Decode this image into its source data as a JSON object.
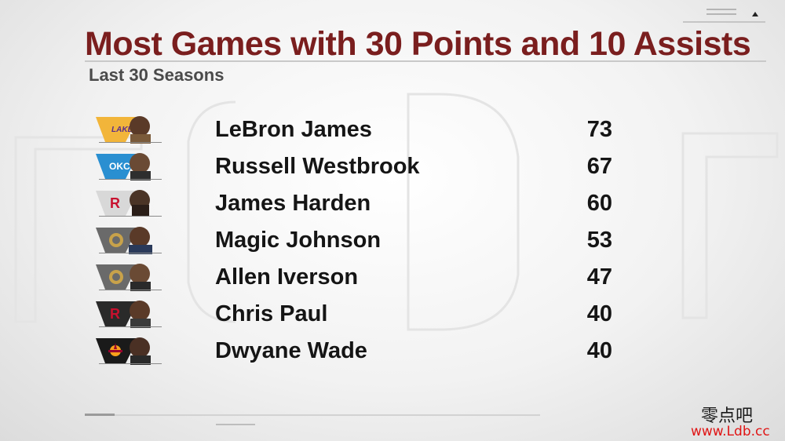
{
  "graphic": {
    "title": "Most Games with 30 Points and 10 Assists",
    "subtitle": "Last 30 Seasons"
  },
  "players": [
    {
      "name": "LeBron James",
      "games": "73",
      "team_logo": "lakers-logo",
      "team_colors": [
        "#552583",
        "#fdb927"
      ]
    },
    {
      "name": "Russell Westbrook",
      "games": "67",
      "team_logo": "thunder-logo",
      "team_colors": [
        "#007ac1",
        "#ef3b24"
      ]
    },
    {
      "name": "James Harden",
      "games": "60",
      "team_logo": "rockets-logo",
      "team_colors": [
        "#ce1141",
        "#c4ced4"
      ]
    },
    {
      "name": "Magic Johnson",
      "games": "53",
      "team_logo": "hall-of-fame-logo",
      "team_colors": [
        "#4a4a4a",
        "#c8a24a"
      ]
    },
    {
      "name": "Allen Iverson",
      "games": "47",
      "team_logo": "hall-of-fame-logo",
      "team_colors": [
        "#4a4a4a",
        "#c8a24a"
      ]
    },
    {
      "name": "Chris Paul",
      "games": "40",
      "team_logo": "rockets-logo",
      "team_colors": [
        "#ce1141",
        "#1a1a1a"
      ]
    },
    {
      "name": "Dwyane Wade",
      "games": "40",
      "team_logo": "heat-logo",
      "team_colors": [
        "#98002e",
        "#f9a01b"
      ]
    }
  ],
  "watermark": {
    "chinese_text": "零点吧",
    "url": "www.Ldb.cc"
  },
  "colors": {
    "title": "#7a1e1e",
    "subtitle": "#4a4a4a",
    "text": "#151515",
    "watermark_url": "#e01515"
  }
}
